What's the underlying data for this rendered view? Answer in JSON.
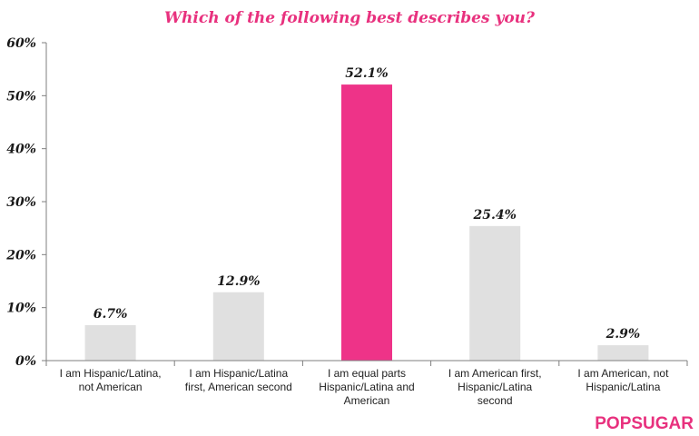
{
  "chart_data": {
    "type": "bar",
    "title": "Which of the following best describes you?",
    "categories": [
      [
        "I am Hispanic/Latina,",
        "not American"
      ],
      [
        "I am Hispanic/Latina",
        "first, American second"
      ],
      [
        "I am equal parts",
        "Hispanic/Latina and",
        "American"
      ],
      [
        "I am American first,",
        "Hispanic/Latina",
        "second"
      ],
      [
        "I am American, not",
        "Hispanic/Latina"
      ]
    ],
    "values": [
      6.7,
      12.9,
      52.1,
      25.4,
      2.9
    ],
    "data_labels": [
      "6.7%",
      "12.9%",
      "52.1%",
      "25.4%",
      "2.9%"
    ],
    "ylim": [
      0,
      60
    ],
    "yticks": [
      0,
      10,
      20,
      30,
      40,
      50,
      60
    ],
    "ytick_labels": [
      "0%",
      "10%",
      "20%",
      "30%",
      "40%",
      "50%",
      "60%"
    ],
    "highlight_index": 2,
    "grid": false,
    "legend": "none"
  },
  "brand": "POPSUGAR",
  "colors": {
    "title": "#e8317e",
    "bar": "#e0e0e0",
    "highlight": "#ee3388",
    "axis": "#7f7f7f",
    "brand": "#e8317e"
  }
}
